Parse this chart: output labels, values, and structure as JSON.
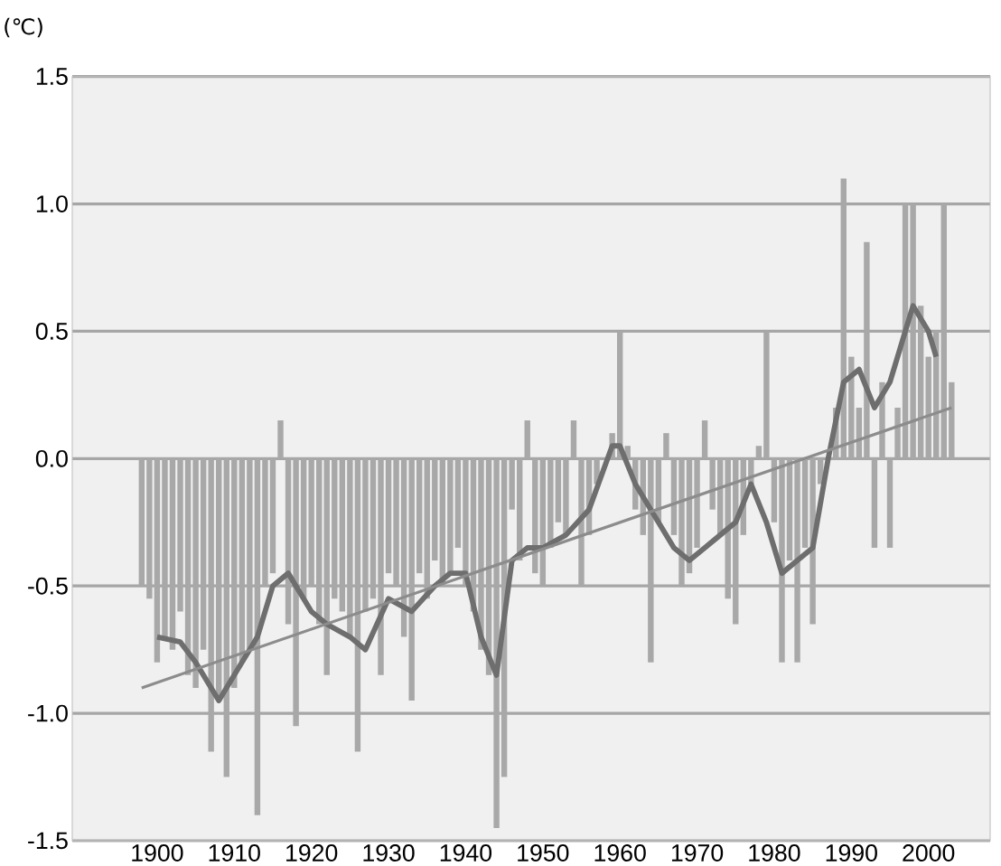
{
  "chart_data": {
    "type": "bar",
    "ylabel": "(℃)",
    "xlim": [
      1889,
      2008
    ],
    "ylim": [
      -1.5,
      1.5
    ],
    "xticks": [
      1900,
      1910,
      1920,
      1930,
      1940,
      1950,
      1960,
      1970,
      1980,
      1990,
      2000
    ],
    "yticks": [
      -1.5,
      {
        "value": -1,
        "label": "-1.0"
      },
      -0.5,
      {
        "value": 0,
        "label": "0.0"
      },
      0.5,
      {
        "value": 1,
        "label": "1.0"
      },
      1.5
    ],
    "grid": "y",
    "marker": "none",
    "series": [
      {
        "color": "#a8a8a8",
        "x": [
          1898,
          1899,
          1900,
          1901,
          1902,
          1903,
          1904,
          1905,
          1906,
          1907,
          1908,
          1909,
          1910,
          1911,
          1912,
          1913,
          1914,
          1915,
          1916,
          1917,
          1918,
          1919,
          1920,
          1921,
          1922,
          1923,
          1924,
          1925,
          1926,
          1927,
          1928,
          1929,
          1930,
          1931,
          1932,
          1933,
          1934,
          1935,
          1936,
          1937,
          1938,
          1939,
          1940,
          1941,
          1942,
          1943,
          1944,
          1945,
          1946,
          1947,
          1948,
          1949,
          1950,
          1951,
          1952,
          1953,
          1954,
          1955,
          1956,
          1957,
          1958,
          1959,
          1960,
          1961,
          1962,
          1963,
          1964,
          1965,
          1966,
          1967,
          1968,
          1969,
          1970,
          1971,
          1972,
          1973,
          1974,
          1975,
          1976,
          1977,
          1978,
          1979,
          1980,
          1981,
          1982,
          1983,
          1984,
          1985,
          1986,
          1987,
          1988,
          1989,
          1990,
          1991,
          1992,
          1993,
          1994,
          1995,
          1996,
          1997,
          1998,
          1999,
          2000,
          2001,
          2002,
          2003
        ],
        "values": [
          -0.5,
          -0.55,
          -0.8,
          -0.7,
          -0.75,
          -0.6,
          -0.85,
          -0.9,
          -0.75,
          -1.15,
          -0.95,
          -1.25,
          -0.9,
          -0.8,
          -0.75,
          -1.4,
          -0.5,
          -0.45,
          0.15,
          -0.65,
          -1.05,
          -0.55,
          -0.5,
          -0.65,
          -0.85,
          -0.55,
          -0.6,
          -0.7,
          -1.15,
          -0.6,
          -0.55,
          -0.85,
          -0.45,
          -0.5,
          -0.7,
          -0.95,
          -0.45,
          -0.55,
          -0.4,
          -0.5,
          -0.45,
          -0.35,
          -0.5,
          -0.6,
          -0.75,
          -0.85,
          -1.45,
          -1.25,
          -0.2,
          -0.4,
          0.15,
          -0.45,
          -0.5,
          -0.35,
          -0.25,
          -0.3,
          0.15,
          -0.5,
          -0.3,
          -0.1,
          0.0,
          0.1,
          0.5,
          0.05,
          -0.2,
          -0.3,
          -0.8,
          -0.25,
          0.1,
          -0.3,
          -0.5,
          -0.45,
          -0.35,
          0.15,
          -0.2,
          -0.3,
          -0.55,
          -0.65,
          -0.3,
          -0.1,
          0.05,
          0.5,
          -0.25,
          -0.8,
          -0.4,
          -0.8,
          -0.35,
          -0.65,
          -0.1,
          0.0,
          0.2,
          1.1,
          0.4,
          0.2,
          0.85,
          -0.35,
          0.3,
          -0.35,
          0.2,
          1.0,
          1.0,
          0.6,
          0.4,
          0.5,
          1.0,
          0.3
        ]
      },
      {
        "type": "line",
        "color": "#6e6e6e",
        "x": [
          1900,
          1903,
          1905,
          1908,
          1910,
          1913,
          1915,
          1917,
          1920,
          1922,
          1925,
          1927,
          1930,
          1933,
          1936,
          1938,
          1940,
          1942,
          1944,
          1946,
          1948,
          1950,
          1953,
          1956,
          1959,
          1960,
          1962,
          1964,
          1967,
          1969,
          1971,
          1973,
          1975,
          1977,
          1979,
          1981,
          1983,
          1985,
          1987,
          1989,
          1991,
          1993,
          1995,
          1997,
          1998,
          2000,
          2001
        ],
        "values": [
          -0.7,
          -0.72,
          -0.8,
          -0.95,
          -0.85,
          -0.7,
          -0.5,
          -0.45,
          -0.6,
          -0.65,
          -0.7,
          -0.75,
          -0.55,
          -0.6,
          -0.5,
          -0.45,
          -0.45,
          -0.7,
          -0.85,
          -0.4,
          -0.35,
          -0.35,
          -0.3,
          -0.2,
          0.05,
          0.05,
          -0.1,
          -0.2,
          -0.35,
          -0.4,
          -0.35,
          -0.3,
          -0.25,
          -0.1,
          -0.25,
          -0.45,
          -0.4,
          -0.35,
          0.0,
          0.3,
          0.35,
          0.2,
          0.3,
          0.5,
          0.6,
          0.5,
          0.4
        ]
      },
      {
        "type": "line",
        "color": "#8c8c8c",
        "x": [
          1898,
          2003
        ],
        "values": [
          -0.9,
          0.2
        ]
      }
    ]
  }
}
